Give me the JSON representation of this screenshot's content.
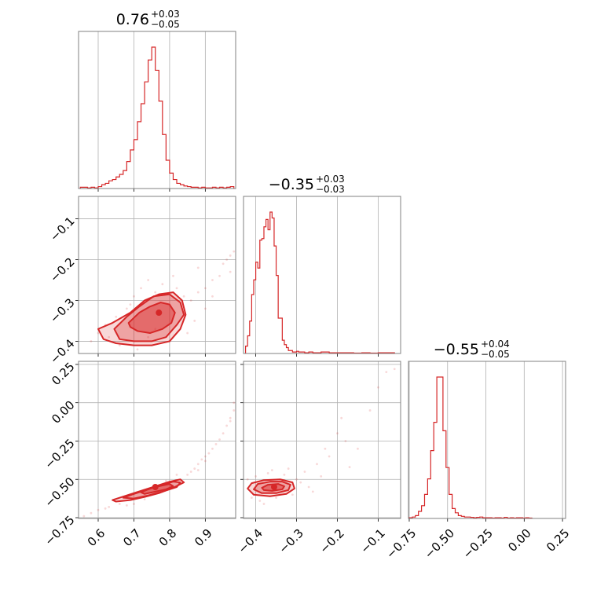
{
  "chart_data": {
    "type": "corner",
    "color": "#d62728",
    "grid": true,
    "parameters": [
      {
        "title_main": "0.76",
        "title_plus": "+0.03",
        "title_minus": "−0.05",
        "range": [
          0.545,
          0.985
        ],
        "ticks": [
          0.6,
          0.7,
          0.8,
          0.9
        ],
        "tick_labels": [
          "0.6",
          "0.7",
          "0.8",
          "0.9"
        ],
        "hist_bins": [
          0.55,
          0.56,
          0.57,
          0.58,
          0.59,
          0.6,
          0.61,
          0.62,
          0.63,
          0.64,
          0.65,
          0.66,
          0.67,
          0.68,
          0.69,
          0.7,
          0.71,
          0.72,
          0.73,
          0.74,
          0.75,
          0.76,
          0.77,
          0.78,
          0.79,
          0.8,
          0.81,
          0.82,
          0.83,
          0.84,
          0.85,
          0.86,
          0.87,
          0.88,
          0.89,
          0.9,
          0.91,
          0.92,
          0.93,
          0.94,
          0.95,
          0.96,
          0.97,
          0.98
        ],
        "hist_values": [
          1,
          1,
          0.5,
          1,
          0.5,
          1.5,
          3,
          4,
          6,
          7,
          9,
          11,
          14,
          21,
          30,
          38,
          52,
          66,
          83,
          100,
          110,
          92,
          68,
          42,
          22,
          12,
          7,
          4,
          3,
          2,
          1.5,
          1,
          1,
          0.5,
          1,
          0.5,
          0.5,
          1,
          0.5,
          1,
          0.5,
          1,
          1.5
        ]
      },
      {
        "title_main": "−0.35",
        "title_plus": "+0.03",
        "title_minus": "−0.03",
        "range": [
          -0.43,
          -0.045
        ],
        "ticks": [
          -0.4,
          -0.3,
          -0.2,
          -0.1
        ],
        "tick_labels": [
          "−0.4",
          "−0.3",
          "−0.2",
          "−0.1"
        ],
        "hist_bins": [
          -0.425,
          -0.42,
          -0.415,
          -0.41,
          -0.405,
          -0.4,
          -0.395,
          -0.39,
          -0.385,
          -0.38,
          -0.375,
          -0.37,
          -0.365,
          -0.36,
          -0.355,
          -0.35,
          -0.345,
          -0.34,
          -0.335,
          -0.33,
          -0.325,
          -0.32,
          -0.315,
          -0.31,
          -0.305,
          -0.3,
          -0.295,
          -0.29,
          -0.285,
          -0.28,
          -0.275,
          -0.27,
          -0.26,
          -0.24,
          -0.22,
          -0.2,
          -0.18,
          -0.16,
          -0.14,
          -0.12,
          -0.1,
          -0.08,
          -0.06
        ],
        "hist_values": [
          5,
          12,
          22,
          40,
          50,
          62,
          58,
          77,
          78,
          86,
          91,
          84,
          96,
          92,
          73,
          53,
          24,
          24,
          9,
          6,
          4,
          2,
          2,
          1,
          1,
          1.5,
          1,
          1,
          1,
          0.5,
          0.5,
          1,
          0.5,
          1,
          0.5,
          0.5,
          0.5,
          0.3,
          0.5,
          0.3,
          0.5,
          0.5
        ]
      },
      {
        "title_main": "−0.55",
        "title_plus": "+0.04",
        "title_minus": "−0.05",
        "range": [
          -0.755,
          0.27
        ],
        "ticks": [
          -0.75,
          -0.5,
          -0.25,
          0.0,
          0.25
        ],
        "tick_labels": [
          "−0.75",
          "−0.50",
          "−0.25",
          "0.00",
          "0.25"
        ],
        "hist_bins": [
          -0.75,
          -0.73,
          -0.71,
          -0.69,
          -0.67,
          -0.65,
          -0.63,
          -0.61,
          -0.59,
          -0.57,
          -0.55,
          -0.53,
          -0.51,
          -0.49,
          -0.47,
          -0.45,
          -0.43,
          -0.41,
          -0.39,
          -0.37,
          -0.35,
          -0.33,
          -0.31,
          -0.29,
          -0.27,
          -0.25,
          -0.23,
          -0.21,
          -0.19,
          -0.17,
          -0.15,
          -0.13,
          -0.11,
          -0.09,
          -0.07,
          -0.05,
          -0.03,
          -0.01,
          0.01,
          0.03,
          0.05
        ],
        "hist_values": [
          0.5,
          1,
          2,
          5,
          9,
          17,
          28,
          48,
          68,
          100,
          100,
          62,
          36,
          17,
          7,
          4,
          2,
          1.5,
          1,
          1,
          0.8,
          0.5,
          0.8,
          1,
          0.5,
          0.5,
          0.5,
          0.3,
          0.5,
          0.5,
          0.3,
          0.8,
          0.3,
          0.5,
          0.3,
          0.5,
          0.5,
          0.3,
          0.5,
          0.3
        ]
      }
    ],
    "pairs": [
      {
        "x_param": 0,
        "y_param": 1,
        "contours": [
          {
            "level": 1,
            "points": [
              [
                0.685,
                -0.355
              ],
              [
                0.715,
                -0.33
              ],
              [
                0.745,
                -0.315
              ],
              [
                0.775,
                -0.305
              ],
              [
                0.8,
                -0.31
              ],
              [
                0.815,
                -0.33
              ],
              [
                0.805,
                -0.355
              ],
              [
                0.78,
                -0.37
              ],
              [
                0.745,
                -0.38
              ],
              [
                0.71,
                -0.375
              ],
              [
                0.69,
                -0.365
              ]
            ]
          },
          {
            "level": 2,
            "points": [
              [
                0.645,
                -0.37
              ],
              [
                0.68,
                -0.34
              ],
              [
                0.715,
                -0.315
              ],
              [
                0.755,
                -0.29
              ],
              [
                0.8,
                -0.285
              ],
              [
                0.83,
                -0.305
              ],
              [
                0.84,
                -0.335
              ],
              [
                0.82,
                -0.36
              ],
              [
                0.79,
                -0.39
              ],
              [
                0.75,
                -0.4
              ],
              [
                0.7,
                -0.4
              ],
              [
                0.66,
                -0.395
              ]
            ]
          },
          {
            "level": 3,
            "points": [
              [
                0.6,
                -0.37
              ],
              [
                0.64,
                -0.355
              ],
              [
                0.69,
                -0.33
              ],
              [
                0.73,
                -0.3
              ],
              [
                0.77,
                -0.285
              ],
              [
                0.81,
                -0.28
              ],
              [
                0.835,
                -0.3
              ],
              [
                0.845,
                -0.335
              ],
              [
                0.83,
                -0.37
              ],
              [
                0.8,
                -0.4
              ],
              [
                0.75,
                -0.41
              ],
              [
                0.7,
                -0.41
              ],
              [
                0.65,
                -0.405
              ],
              [
                0.615,
                -0.395
              ]
            ]
          }
        ],
        "peak": [
          0.77,
          -0.33
        ],
        "scatter": [
          [
            0.6,
            -0.38
          ],
          [
            0.62,
            -0.36
          ],
          [
            0.63,
            -0.39
          ],
          [
            0.65,
            -0.34
          ],
          [
            0.66,
            -0.41
          ],
          [
            0.68,
            -0.32
          ],
          [
            0.7,
            -0.29
          ],
          [
            0.71,
            -0.42
          ],
          [
            0.72,
            -0.27
          ],
          [
            0.74,
            -0.25
          ],
          [
            0.76,
            -0.28
          ],
          [
            0.78,
            -0.26
          ],
          [
            0.8,
            -0.4
          ],
          [
            0.82,
            -0.27
          ],
          [
            0.84,
            -0.29
          ],
          [
            0.86,
            -0.3
          ],
          [
            0.88,
            -0.28
          ],
          [
            0.9,
            -0.27
          ],
          [
            0.92,
            -0.25
          ],
          [
            0.94,
            -0.24
          ],
          [
            0.95,
            -0.21
          ],
          [
            0.96,
            -0.2
          ],
          [
            0.97,
            -0.19
          ],
          [
            0.98,
            -0.18
          ],
          [
            0.9,
            -0.32
          ],
          [
            0.87,
            -0.35
          ],
          [
            0.85,
            -0.38
          ],
          [
            0.58,
            -0.4
          ],
          [
            0.76,
            -0.37
          ],
          [
            0.74,
            -0.39
          ],
          [
            0.69,
            -0.31
          ],
          [
            0.81,
            -0.24
          ],
          [
            0.88,
            -0.22
          ],
          [
            0.92,
            -0.29
          ],
          [
            0.97,
            -0.23
          ]
        ]
      },
      {
        "x_param": 0,
        "y_param": 2,
        "contours": [
          {
            "level": 1,
            "points": [
              [
                0.72,
                -0.585
              ],
              [
                0.75,
                -0.555
              ],
              [
                0.78,
                -0.54
              ],
              [
                0.8,
                -0.53
              ],
              [
                0.81,
                -0.545
              ],
              [
                0.79,
                -0.565
              ],
              [
                0.76,
                -0.58
              ],
              [
                0.73,
                -0.595
              ]
            ]
          },
          {
            "level": 2,
            "points": [
              [
                0.67,
                -0.62
              ],
              [
                0.7,
                -0.595
              ],
              [
                0.74,
                -0.565
              ],
              [
                0.78,
                -0.535
              ],
              [
                0.81,
                -0.515
              ],
              [
                0.83,
                -0.52
              ],
              [
                0.82,
                -0.55
              ],
              [
                0.78,
                -0.58
              ],
              [
                0.74,
                -0.605
              ],
              [
                0.7,
                -0.625
              ]
            ]
          },
          {
            "level": 3,
            "points": [
              [
                0.64,
                -0.635
              ],
              [
                0.68,
                -0.605
              ],
              [
                0.72,
                -0.575
              ],
              [
                0.76,
                -0.545
              ],
              [
                0.8,
                -0.515
              ],
              [
                0.83,
                -0.5
              ],
              [
                0.84,
                -0.52
              ],
              [
                0.81,
                -0.555
              ],
              [
                0.77,
                -0.59
              ],
              [
                0.73,
                -0.615
              ],
              [
                0.69,
                -0.635
              ],
              [
                0.65,
                -0.645
              ]
            ]
          }
        ],
        "peak": [
          0.76,
          -0.55
        ],
        "scatter": [
          [
            0.56,
            -0.74
          ],
          [
            0.58,
            -0.72
          ],
          [
            0.6,
            -0.7
          ],
          [
            0.62,
            -0.69
          ],
          [
            0.63,
            -0.68
          ],
          [
            0.66,
            -0.66
          ],
          [
            0.85,
            -0.47
          ],
          [
            0.86,
            -0.45
          ],
          [
            0.87,
            -0.43
          ],
          [
            0.88,
            -0.4
          ],
          [
            0.89,
            -0.37
          ],
          [
            0.9,
            -0.35
          ],
          [
            0.91,
            -0.33
          ],
          [
            0.92,
            -0.3
          ],
          [
            0.93,
            -0.27
          ],
          [
            0.94,
            -0.24
          ],
          [
            0.95,
            -0.2
          ],
          [
            0.96,
            -0.15
          ],
          [
            0.97,
            -0.1
          ],
          [
            0.98,
            -0.05
          ],
          [
            0.98,
            0.0
          ],
          [
            0.97,
            -0.12
          ],
          [
            0.9,
            -0.38
          ],
          [
            0.88,
            -0.44
          ],
          [
            0.7,
            -0.66
          ],
          [
            0.68,
            -0.67
          ],
          [
            0.82,
            -0.47
          ],
          [
            0.75,
            -0.6
          ],
          [
            0.73,
            -0.63
          ],
          [
            0.79,
            -0.51
          ]
        ]
      },
      {
        "x_param": 1,
        "y_param": 2,
        "contours": [
          {
            "level": 1,
            "points": [
              [
                -0.385,
                -0.555
              ],
              [
                -0.37,
                -0.535
              ],
              [
                -0.345,
                -0.53
              ],
              [
                -0.33,
                -0.545
              ],
              [
                -0.335,
                -0.565
              ],
              [
                -0.36,
                -0.575
              ],
              [
                -0.38,
                -0.57
              ]
            ]
          },
          {
            "level": 2,
            "points": [
              [
                -0.405,
                -0.565
              ],
              [
                -0.395,
                -0.53
              ],
              [
                -0.365,
                -0.515
              ],
              [
                -0.335,
                -0.515
              ],
              [
                -0.315,
                -0.535
              ],
              [
                -0.32,
                -0.57
              ],
              [
                -0.35,
                -0.59
              ],
              [
                -0.385,
                -0.59
              ]
            ]
          },
          {
            "level": 3,
            "points": [
              [
                -0.42,
                -0.56
              ],
              [
                -0.41,
                -0.525
              ],
              [
                -0.38,
                -0.505
              ],
              [
                -0.34,
                -0.5
              ],
              [
                -0.31,
                -0.52
              ],
              [
                -0.305,
                -0.56
              ],
              [
                -0.325,
                -0.595
              ],
              [
                -0.365,
                -0.61
              ],
              [
                -0.405,
                -0.6
              ]
            ]
          }
        ],
        "peak": [
          -0.355,
          -0.55
        ],
        "scatter": [
          [
            -0.42,
            -0.5
          ],
          [
            -0.41,
            -0.62
          ],
          [
            -0.4,
            -0.48
          ],
          [
            -0.39,
            -0.64
          ],
          [
            -0.37,
            -0.46
          ],
          [
            -0.35,
            -0.62
          ],
          [
            -0.33,
            -0.47
          ],
          [
            -0.31,
            -0.6
          ],
          [
            -0.3,
            -0.5
          ],
          [
            -0.29,
            -0.52
          ],
          [
            -0.28,
            -0.45
          ],
          [
            -0.27,
            -0.55
          ],
          [
            -0.25,
            -0.4
          ],
          [
            -0.23,
            -0.3
          ],
          [
            -0.22,
            -0.35
          ],
          [
            -0.2,
            -0.2
          ],
          [
            -0.19,
            -0.1
          ],
          [
            -0.18,
            -0.25
          ],
          [
            -0.15,
            -0.3
          ],
          [
            -0.12,
            -0.05
          ],
          [
            -0.1,
            0.1
          ],
          [
            -0.08,
            0.2
          ],
          [
            -0.06,
            0.22
          ],
          [
            -0.38,
            -0.66
          ],
          [
            -0.36,
            -0.44
          ],
          [
            -0.32,
            -0.43
          ],
          [
            -0.26,
            -0.58
          ],
          [
            -0.24,
            -0.48
          ],
          [
            -0.17,
            -0.42
          ]
        ]
      }
    ]
  }
}
